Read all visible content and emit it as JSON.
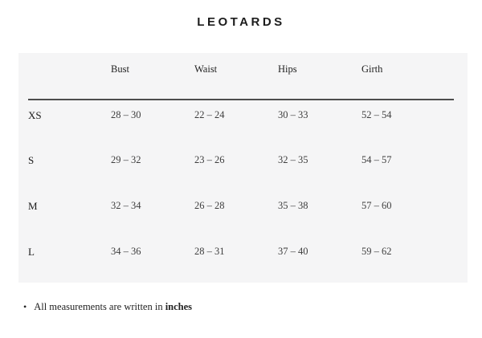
{
  "page": {
    "title": "LEOTARDS"
  },
  "table": {
    "columns": [
      "Bust",
      "Waist",
      "Hips",
      "Girth"
    ],
    "rows": [
      {
        "size": "XS",
        "values": [
          "28 – 30",
          "22 – 24",
          "30 – 33",
          "52 – 54"
        ]
      },
      {
        "size": "S",
        "values": [
          "29 – 32",
          "23 – 26",
          "32 – 35",
          "54 – 57"
        ]
      },
      {
        "size": "M",
        "values": [
          "32 – 34",
          "26 – 28",
          "35 – 38",
          "57 – 60"
        ]
      },
      {
        "size": "L",
        "values": [
          "34 – 36",
          "28 – 31",
          "37 – 40",
          "59 – 62"
        ]
      }
    ]
  },
  "note": {
    "bullet": "•",
    "prefix": "All measurements are written in ",
    "emphasis": "inches"
  },
  "colors": {
    "panel_bg": "#f5f5f6",
    "text": "#1f1f1f",
    "header_rule": "#4d4d4d"
  },
  "chart_data": {
    "type": "table",
    "title": "LEOTARDS",
    "categories": [
      "Bust",
      "Waist",
      "Hips",
      "Girth"
    ],
    "series": [
      {
        "name": "XS",
        "values": [
          "28 – 30",
          "22 – 24",
          "30 – 33",
          "52 – 54"
        ]
      },
      {
        "name": "S",
        "values": [
          "29 – 32",
          "23 – 26",
          "32 – 35",
          "54 – 57"
        ]
      },
      {
        "name": "M",
        "values": [
          "32 – 34",
          "26 – 28",
          "35 – 38",
          "57 – 60"
        ]
      },
      {
        "name": "L",
        "values": [
          "34 – 36",
          "28 – 31",
          "37 – 40",
          "59 – 62"
        ]
      }
    ]
  }
}
